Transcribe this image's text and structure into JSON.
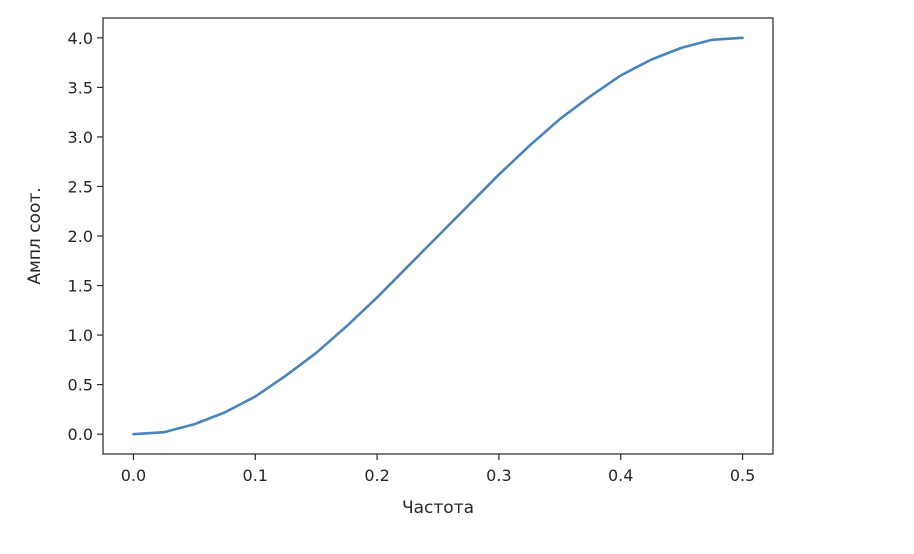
{
  "chart_data": {
    "type": "line",
    "title": "",
    "xlabel": "Частота",
    "ylabel": "Ампл соот.",
    "xlim": [
      -0.025,
      0.525
    ],
    "ylim": [
      -0.2,
      4.2
    ],
    "xticks": [
      0.0,
      0.1,
      0.2,
      0.3,
      0.4,
      0.5
    ],
    "xtick_labels": [
      "0.0",
      "0.1",
      "0.2",
      "0.3",
      "0.4",
      "0.5"
    ],
    "yticks": [
      0.0,
      0.5,
      1.0,
      1.5,
      2.0,
      2.5,
      3.0,
      3.5,
      4.0
    ],
    "ytick_labels": [
      "0.0",
      "0.5",
      "1.0",
      "1.5",
      "2.0",
      "2.5",
      "3.0",
      "3.5",
      "4.0"
    ],
    "grid": false,
    "legend": "none",
    "series": [
      {
        "color": "#4a84bd",
        "x": [
          0.0,
          0.025,
          0.05,
          0.075,
          0.1,
          0.125,
          0.15,
          0.175,
          0.2,
          0.225,
          0.25,
          0.275,
          0.3,
          0.325,
          0.35,
          0.375,
          0.4,
          0.425,
          0.45,
          0.475,
          0.5
        ],
        "y": [
          0.0,
          0.02,
          0.1,
          0.22,
          0.38,
          0.59,
          0.82,
          1.09,
          1.38,
          1.69,
          2.0,
          2.31,
          2.62,
          2.91,
          3.18,
          3.41,
          3.62,
          3.78,
          3.9,
          3.98,
          4.0
        ]
      }
    ]
  }
}
